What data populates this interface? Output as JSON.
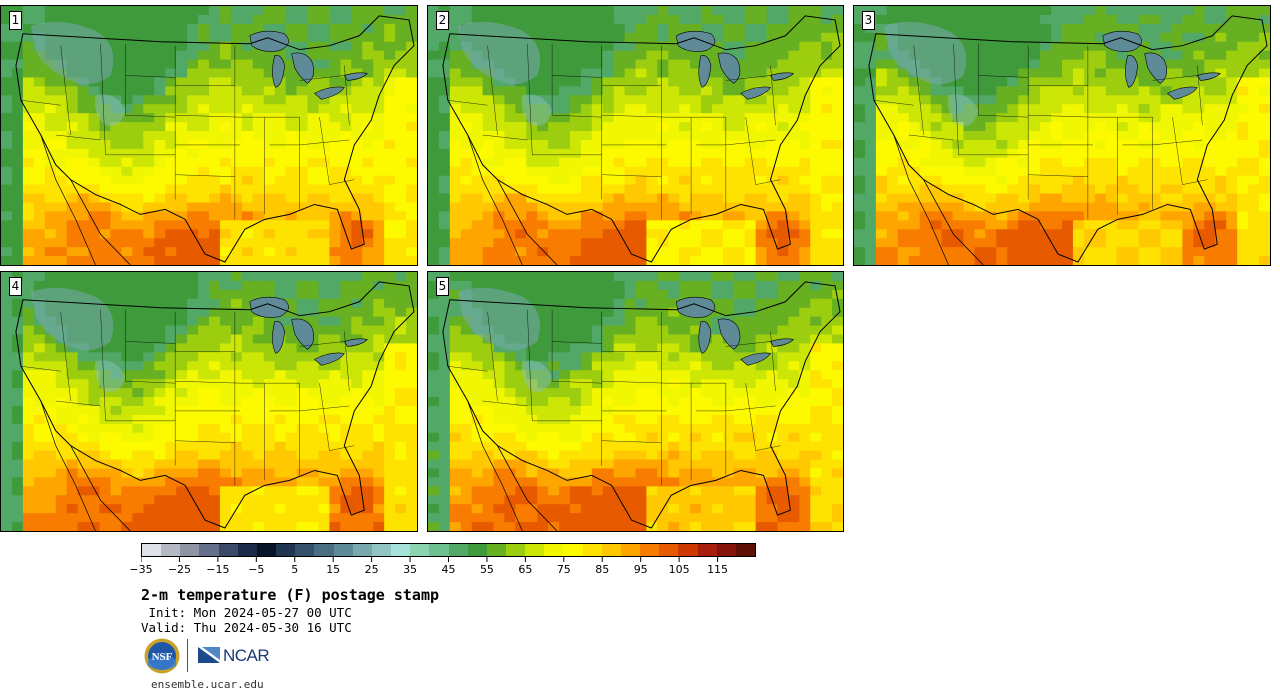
{
  "panels": [
    {
      "label": "1"
    },
    {
      "label": "2"
    },
    {
      "label": "3"
    },
    {
      "label": "4"
    },
    {
      "label": "5"
    }
  ],
  "colorbar": {
    "colors": [
      "#dfe1e8",
      "#b5b9c4",
      "#8f95a4",
      "#66708a",
      "#3b4a68",
      "#1c2b48",
      "#0a1428",
      "#203650",
      "#35506a",
      "#4a6d82",
      "#5f8b98",
      "#79a9af",
      "#8fc4c3",
      "#a6e2da",
      "#8ad4b2",
      "#6fc090",
      "#52a866",
      "#3f9a3c",
      "#66b022",
      "#9ccd0e",
      "#cce605",
      "#f0f700",
      "#fdfa00",
      "#fee200",
      "#ffc800",
      "#fea500",
      "#f77c00",
      "#e85a00",
      "#cc3a00",
      "#a81f0e",
      "#85150c",
      "#5e1006"
    ],
    "tick_labels": [
      "−35",
      "−25",
      "−15",
      "−5",
      "5",
      "15",
      "25",
      "35",
      "45",
      "55",
      "65",
      "75",
      "85",
      "95",
      "105",
      "115"
    ]
  },
  "title": "2-m temperature (F) postage stamp",
  "init": " Init: Mon 2024-05-27 00 UTC",
  "valid": "Valid: Thu 2024-05-30 16 UTC",
  "logos": {
    "nsf": "NSF",
    "ncar": "NCAR"
  },
  "website": "ensemble.ucar.edu"
}
